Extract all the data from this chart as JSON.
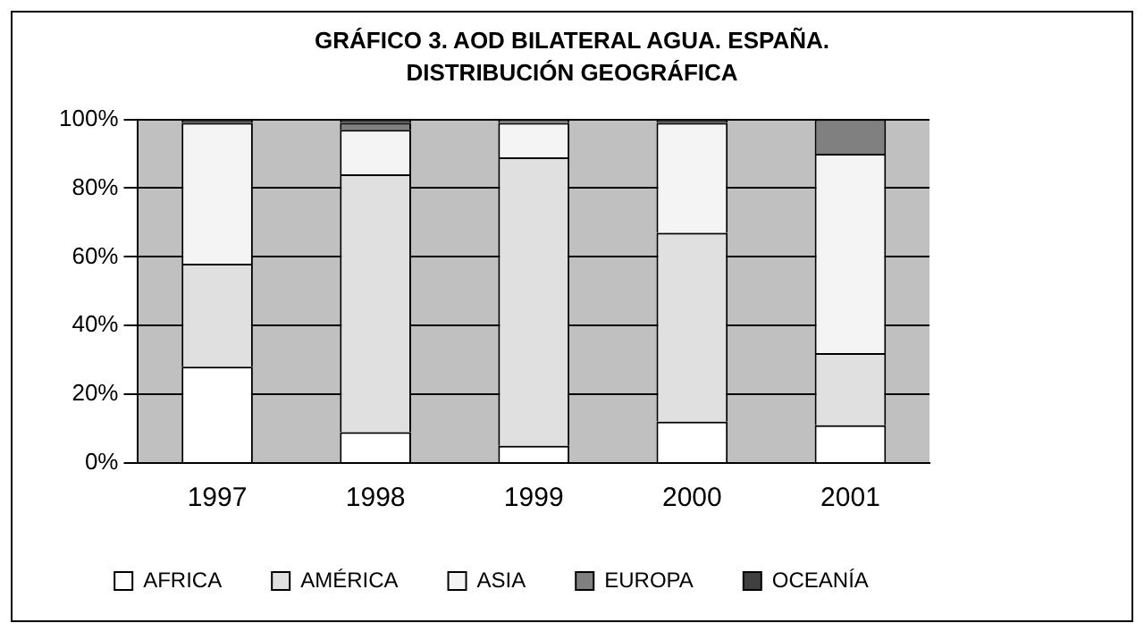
{
  "chart_data": {
    "type": "bar",
    "title": "GRÁFICO 3. AOD BILATERAL AGUA. ESPAÑA. DISTRIBUCIÓN GEOGRÁFICA",
    "categories": [
      "1997",
      "1998",
      "1999",
      "2000",
      "2001"
    ],
    "stacked": true,
    "series": [
      {
        "name": "AFRICA",
        "color": "#ffffff",
        "values": [
          28,
          9,
          5,
          12,
          11
        ]
      },
      {
        "name": "AMÉRICA",
        "color": "#e0e0e0",
        "values": [
          30,
          75,
          84,
          55,
          21
        ]
      },
      {
        "name": "ASIA",
        "color": "#f4f4f4",
        "values": [
          41,
          13,
          10,
          32,
          58
        ]
      },
      {
        "name": "EUROPA",
        "color": "#808080",
        "values": [
          0,
          2,
          1,
          0,
          10
        ]
      },
      {
        "name": "OCEANÍA",
        "color": "#404040",
        "values": [
          1,
          1,
          0,
          1,
          0
        ]
      }
    ],
    "ylim": [
      0,
      100
    ],
    "yticks": [
      {
        "value": 0,
        "label": "0%"
      },
      {
        "value": 20,
        "label": "20%"
      },
      {
        "value": 40,
        "label": "40%"
      },
      {
        "value": 60,
        "label": "60%"
      },
      {
        "value": 80,
        "label": "80%"
      },
      {
        "value": 100,
        "label": "100%"
      }
    ],
    "grid": "y",
    "legend": "bottom"
  }
}
